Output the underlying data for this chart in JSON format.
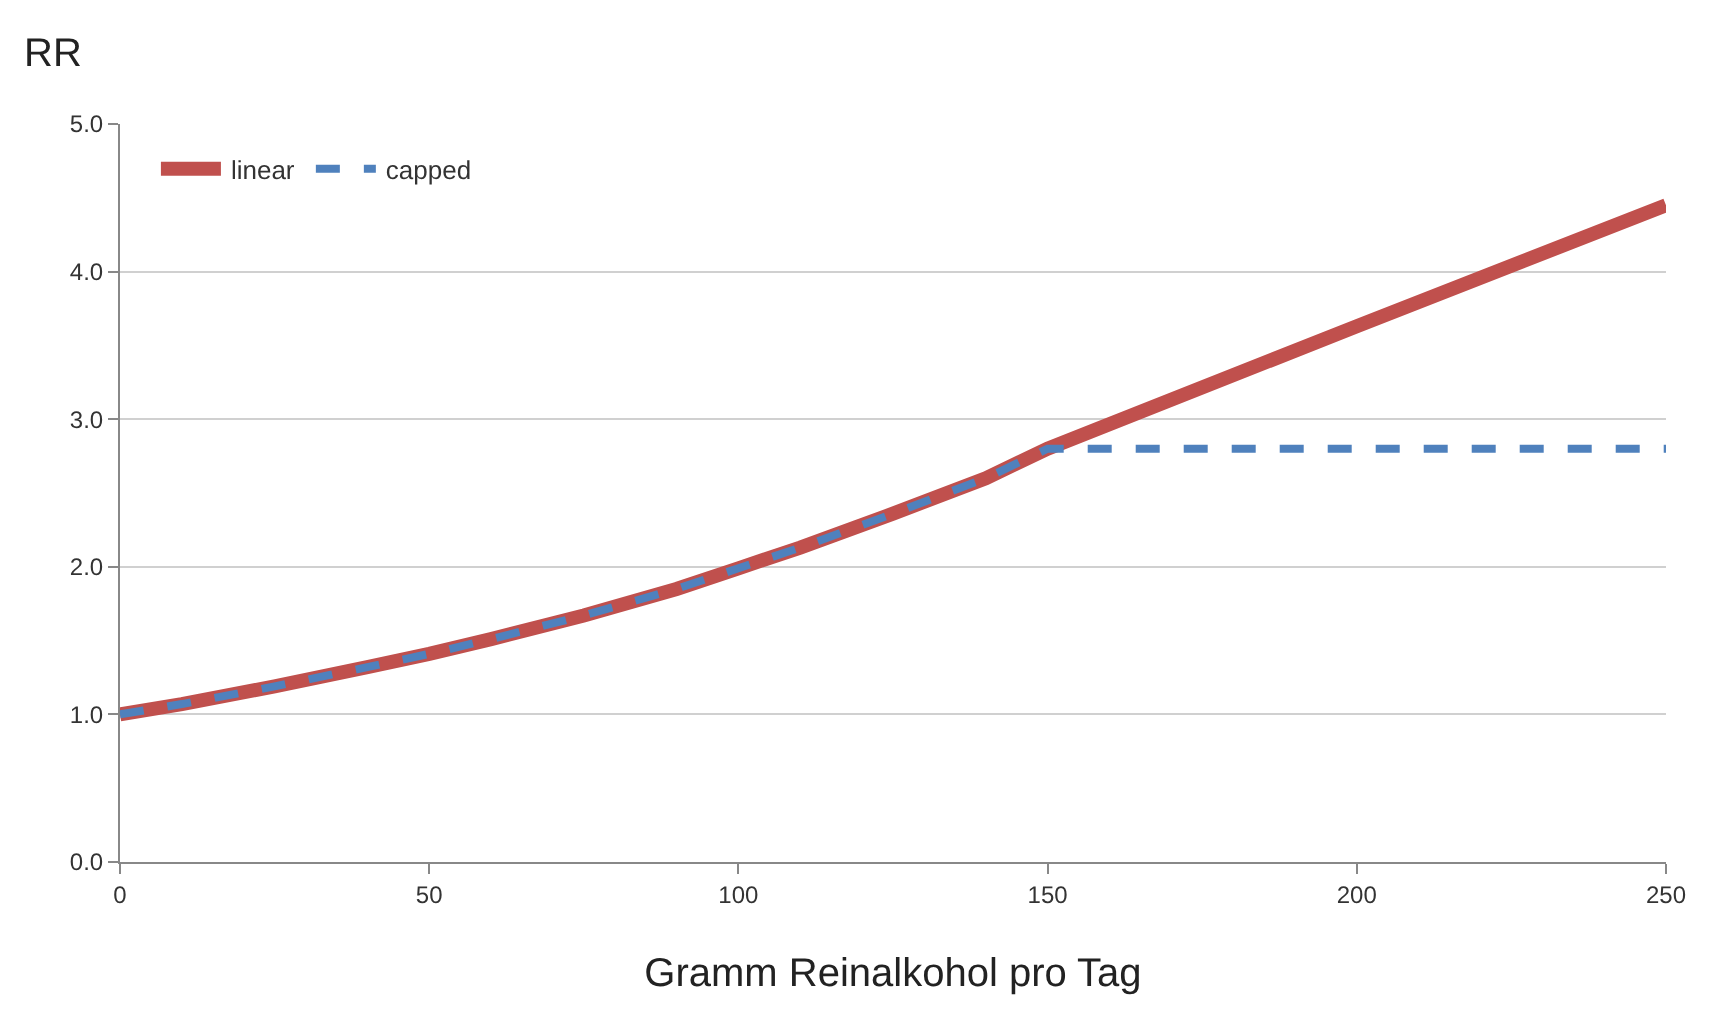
{
  "chart_data": {
    "type": "line",
    "xlabel": "Gramm Reinalkohol pro Tag",
    "ylabel": "RR",
    "xlim": [
      0,
      250
    ],
    "xticks": [
      0,
      50,
      100,
      150,
      200,
      250
    ],
    "ylim": [
      0,
      5
    ],
    "yticks": [
      {
        "value": 0,
        "label": "0.0"
      },
      {
        "value": 1,
        "label": "1.0"
      },
      {
        "value": 2,
        "label": "2.0"
      },
      {
        "value": 3,
        "label": "3.0"
      },
      {
        "value": 4,
        "label": "4.0"
      },
      {
        "value": 5,
        "label": "5.0"
      }
    ],
    "grid": "y",
    "legend": "top left",
    "marker": "none",
    "series": [
      {
        "name": "linear",
        "color": "#c0504d",
        "line_style": "solid",
        "x": [
          0,
          10,
          25,
          40,
          50,
          60,
          75,
          90,
          100,
          110,
          125,
          140,
          150,
          200,
          250
        ],
        "values": [
          1.0,
          1.07,
          1.19,
          1.32,
          1.41,
          1.51,
          1.67,
          1.85,
          1.99,
          2.13,
          2.36,
          2.6,
          2.8,
          3.63,
          4.45
        ]
      },
      {
        "name": "capped",
        "color": "#4f81bd",
        "line_style": "dashed",
        "x": [
          0,
          10,
          25,
          40,
          50,
          60,
          75,
          90,
          100,
          110,
          125,
          140,
          150,
          200,
          250
        ],
        "values": [
          1.0,
          1.07,
          1.19,
          1.32,
          1.41,
          1.51,
          1.67,
          1.85,
          1.99,
          2.13,
          2.36,
          2.6,
          2.8,
          2.8,
          2.8
        ]
      }
    ]
  }
}
